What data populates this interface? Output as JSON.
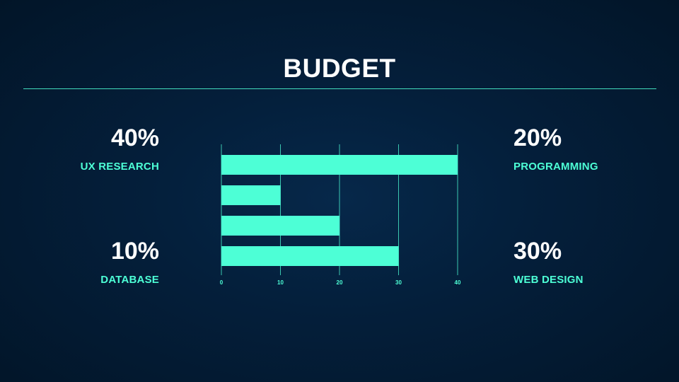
{
  "slide": {
    "title": "BUDGET"
  },
  "stats": {
    "ux_research": {
      "percent": "40%",
      "label": "UX RESEARCH"
    },
    "database": {
      "percent": "10%",
      "label": "DATABASE"
    },
    "programming": {
      "percent": "20%",
      "label": "PROGRAMMING"
    },
    "web_design": {
      "percent": "30%",
      "label": "WEB DESIGN"
    }
  },
  "colors": {
    "accent": "#4dffd6",
    "background": "#041f3b",
    "text": "#ffffff"
  },
  "chart_data": {
    "type": "bar",
    "orientation": "horizontal",
    "title": "",
    "xlabel": "",
    "ylabel": "",
    "categories": [
      "UX RESEARCH",
      "DATABASE",
      "PROGRAMMING",
      "WEB DESIGN"
    ],
    "values": [
      40,
      10,
      20,
      30
    ],
    "xlim": [
      0,
      40
    ],
    "xticks": [
      0,
      10,
      20,
      30,
      40
    ],
    "grid": true,
    "legend": "none"
  }
}
